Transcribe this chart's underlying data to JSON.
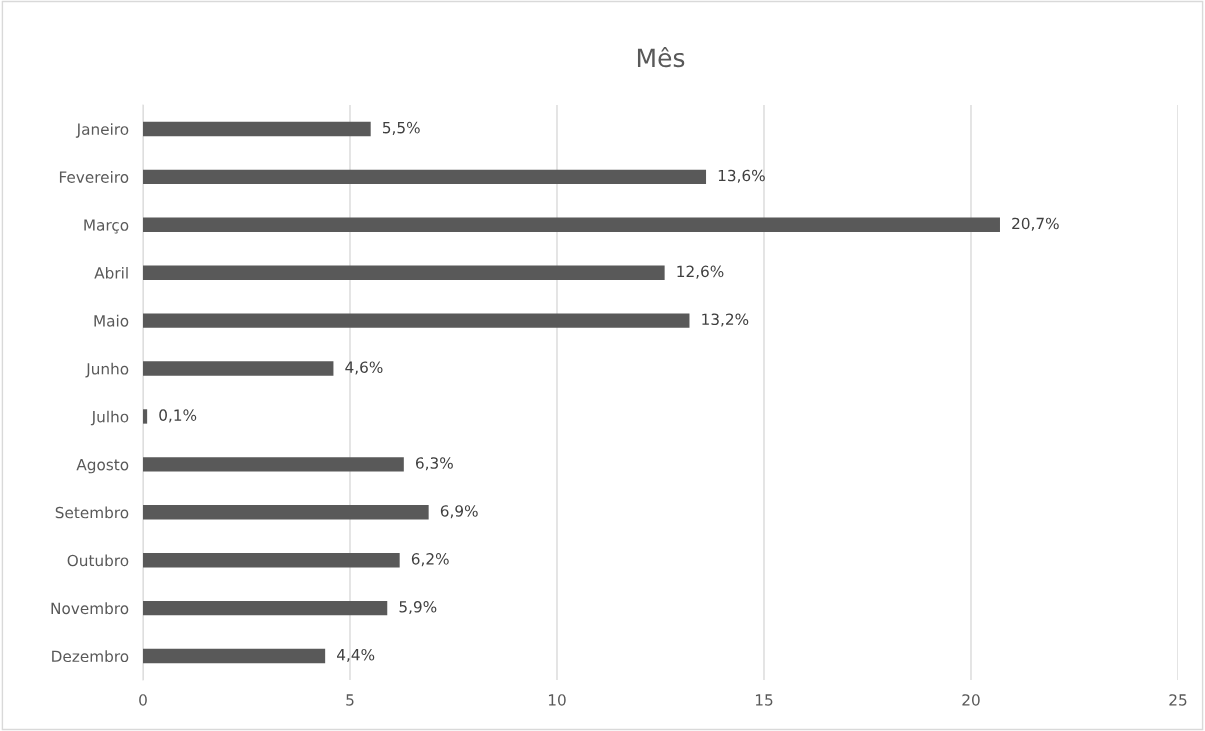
{
  "chart_data": {
    "type": "bar",
    "orientation": "horizontal",
    "title": "Mês",
    "categories": [
      "Janeiro",
      "Fevereiro",
      "Março",
      "Abril",
      "Maio",
      "Junho",
      "Julho",
      "Agosto",
      "Setembro",
      "Outubro",
      "Novembro",
      "Dezembro"
    ],
    "values": [
      5.5,
      13.6,
      20.7,
      12.6,
      13.2,
      4.6,
      0.1,
      6.3,
      6.9,
      6.2,
      5.9,
      4.4
    ],
    "value_labels": [
      "5,5%",
      "13,6%",
      "20,7%",
      "12,6%",
      "13,2%",
      "4,6%",
      "0,1%",
      "6,3%",
      "6,9%",
      "6,2%",
      "5,9%",
      "4,4%"
    ],
    "color": "#595959",
    "xlim": [
      0,
      25
    ],
    "xticks": [
      0,
      5,
      10,
      15,
      20,
      25
    ],
    "grid": "x",
    "legend": false
  }
}
